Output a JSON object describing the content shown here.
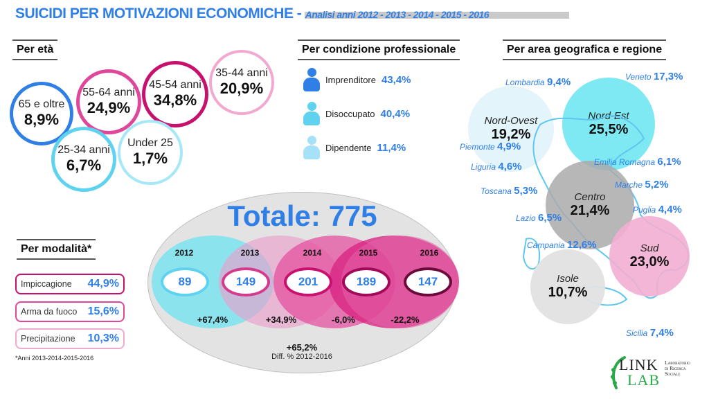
{
  "header": {
    "title": "SUICIDI PER MOTIVAZIONI ECONOMICHE - ",
    "subtitle": "Analisi anni 2012 - 2013 - 2014 - 2015 - 2016"
  },
  "age": {
    "heading": "Per età",
    "items": [
      {
        "label": "65 e oltre",
        "value": "8,9%",
        "color": "#2f7fe6"
      },
      {
        "label": "55-64 anni",
        "value": "24,9%",
        "color": "#e0479a"
      },
      {
        "label": "45-54 anni",
        "value": "34,8%",
        "color": "#c8106e"
      },
      {
        "label": "35-44 anni",
        "value": "20,9%",
        "color": "#f2a9d0"
      },
      {
        "label": "25-34 anni",
        "value": "6,7%",
        "color": "#5fd2f0"
      },
      {
        "label": "Under 25",
        "value": "1,7%",
        "color": "#a6e8f7"
      }
    ]
  },
  "professional": {
    "heading": "Per condizione professionale",
    "items": [
      {
        "label": "Imprenditore",
        "value": "43,4%",
        "color": "#2f7fe6"
      },
      {
        "label": "Disoccupato",
        "value": "40,4%",
        "color": "#5fd2f0"
      },
      {
        "label": "Dipendente",
        "value": "11,4%",
        "color": "#a6e1f7"
      }
    ]
  },
  "modality": {
    "heading": "Per modalità*",
    "items": [
      {
        "label": "Impiccagione",
        "value": "44,9%",
        "color": "#c8106e"
      },
      {
        "label": "Arma da fuoco",
        "value": "15,6%",
        "color": "#e0479a"
      },
      {
        "label": "Precipitazione",
        "value": "10,3%",
        "color": "#f2a9d0"
      }
    ],
    "footnote": "*Anni 2013-2014-2015-2016"
  },
  "totals": {
    "title": "Totale: 775",
    "years": [
      {
        "year": "2012",
        "value": "89"
      },
      {
        "year": "2013",
        "value": "149"
      },
      {
        "year": "2014",
        "value": "201"
      },
      {
        "year": "2015",
        "value": "189"
      },
      {
        "year": "2016",
        "value": "147"
      }
    ],
    "diffs": [
      "+67,4%",
      "+34,9%",
      "-6,0%",
      "-22,2%"
    ],
    "total_diff_value": "+65,2%",
    "total_diff_label": "Diff. % 2012-2016"
  },
  "geo": {
    "heading": "Per area geografica e regione",
    "areas": [
      {
        "name": "Nord-Ovest",
        "value": "19,2%",
        "color": "#e3f4fb"
      },
      {
        "name": "Nord-Est",
        "value": "25,5%",
        "color": "#7ee9f3"
      },
      {
        "name": "Centro",
        "value": "21,4%",
        "color": "#b4b4b4"
      },
      {
        "name": "Sud",
        "value": "23,0%",
        "color": "#f3aed2"
      },
      {
        "name": "Isole",
        "value": "10,7%",
        "color": "#e2e2e2"
      }
    ],
    "regions": [
      {
        "name": "Lombardia",
        "value": "9,4%"
      },
      {
        "name": "Veneto",
        "value": "17,3%"
      },
      {
        "name": "Piemonte",
        "value": "4,9%"
      },
      {
        "name": "Liguria",
        "value": "4,6%"
      },
      {
        "name": "Emilia Romagna",
        "value": "6,1%"
      },
      {
        "name": "Toscana",
        "value": "5,3%"
      },
      {
        "name": "Marche",
        "value": "5,2%"
      },
      {
        "name": "Lazio",
        "value": "6,5%"
      },
      {
        "name": "Puglia",
        "value": "4,4%"
      },
      {
        "name": "Campania",
        "value": "12,6%"
      },
      {
        "name": "Sicilia",
        "value": "7,4%"
      }
    ]
  },
  "logo": {
    "word1": "LINK",
    "word2": "LAB",
    "tag1": "Laboratorio",
    "tag2": "di Ricerca",
    "tag3": "Sociale"
  }
}
